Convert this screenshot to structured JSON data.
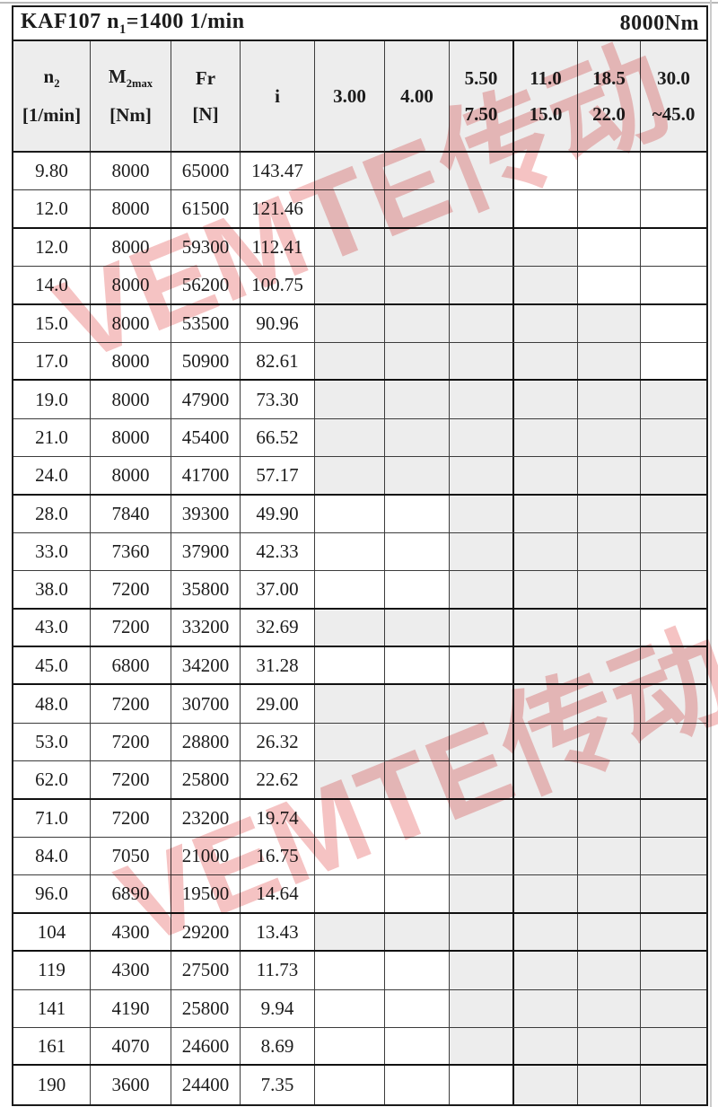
{
  "title": {
    "left_main": "KAF107 n",
    "left_sub": "1",
    "left_tail": "=1400 1/min",
    "torque": "8000Nm"
  },
  "watermark": {
    "text": "VEMTE传动"
  },
  "colors": {
    "shaded_cell": "#ededed",
    "grid_line": "#3c3c3c",
    "thick_line": "#111111",
    "watermark_red": "#e56a6a"
  },
  "columns": [
    {
      "id": "n2",
      "base": "n",
      "sub": "2",
      "line2": "[1/min]"
    },
    {
      "id": "m2max",
      "base": "M",
      "sub": "2max",
      "line2": "[Nm]"
    },
    {
      "id": "fr",
      "base": "Fr",
      "sub": "",
      "line2": "[N]"
    },
    {
      "id": "i",
      "base": "i",
      "sub": "",
      "line2": ""
    },
    {
      "id": "r3",
      "base": "3.00",
      "sub": "",
      "line2": ""
    },
    {
      "id": "r4",
      "base": "4.00",
      "sub": "",
      "line2": ""
    },
    {
      "id": "r55",
      "base": "5.50",
      "sub": "",
      "line2": "7.50"
    },
    {
      "id": "r11",
      "base": "11.0",
      "sub": "",
      "line2": "15.0"
    },
    {
      "id": "r185",
      "base": "18.5",
      "sub": "",
      "line2": "22.0"
    },
    {
      "id": "r30",
      "base": "30.0",
      "sub": "",
      "line2": "~45.0"
    }
  ],
  "rows": [
    {
      "n2": "9.80",
      "m2max": "8000",
      "fr": "65000",
      "i": "143.47",
      "shaded": [
        1,
        1,
        1,
        0,
        0,
        0
      ],
      "group_end": false
    },
    {
      "n2": "12.0",
      "m2max": "8000",
      "fr": "61500",
      "i": "121.46",
      "shaded": [
        1,
        1,
        1,
        0,
        0,
        0
      ],
      "group_end": true
    },
    {
      "n2": "12.0",
      "m2max": "8000",
      "fr": "59300",
      "i": "112.41",
      "shaded": [
        1,
        1,
        1,
        1,
        0,
        0
      ],
      "group_end": false
    },
    {
      "n2": "14.0",
      "m2max": "8000",
      "fr": "56200",
      "i": "100.75",
      "shaded": [
        1,
        1,
        1,
        1,
        0,
        0
      ],
      "group_end": true
    },
    {
      "n2": "15.0",
      "m2max": "8000",
      "fr": "53500",
      "i": "90.96",
      "shaded": [
        1,
        1,
        1,
        1,
        1,
        0
      ],
      "group_end": false
    },
    {
      "n2": "17.0",
      "m2max": "8000",
      "fr": "50900",
      "i": "82.61",
      "shaded": [
        1,
        1,
        1,
        1,
        1,
        0
      ],
      "group_end": true
    },
    {
      "n2": "19.0",
      "m2max": "8000",
      "fr": "47900",
      "i": "73.30",
      "shaded": [
        1,
        1,
        1,
        1,
        1,
        1
      ],
      "group_end": false
    },
    {
      "n2": "21.0",
      "m2max": "8000",
      "fr": "45400",
      "i": "66.52",
      "shaded": [
        1,
        1,
        1,
        1,
        1,
        1
      ],
      "group_end": false
    },
    {
      "n2": "24.0",
      "m2max": "8000",
      "fr": "41700",
      "i": "57.17",
      "shaded": [
        1,
        1,
        1,
        1,
        1,
        1
      ],
      "group_end": true
    },
    {
      "n2": "28.0",
      "m2max": "7840",
      "fr": "39300",
      "i": "49.90",
      "shaded": [
        0,
        0,
        1,
        1,
        1,
        1
      ],
      "group_end": false
    },
    {
      "n2": "33.0",
      "m2max": "7360",
      "fr": "37900",
      "i": "42.33",
      "shaded": [
        0,
        0,
        1,
        1,
        1,
        1
      ],
      "group_end": false
    },
    {
      "n2": "38.0",
      "m2max": "7200",
      "fr": "35800",
      "i": "37.00",
      "shaded": [
        0,
        0,
        1,
        1,
        1,
        1
      ],
      "group_end": true
    },
    {
      "n2": "43.0",
      "m2max": "7200",
      "fr": "33200",
      "i": "32.69",
      "shaded": [
        1,
        1,
        1,
        1,
        1,
        0
      ],
      "group_end": true
    },
    {
      "n2": "45.0",
      "m2max": "6800",
      "fr": "34200",
      "i": "31.28",
      "shaded": [
        0,
        0,
        0,
        1,
        1,
        1
      ],
      "group_end": true
    },
    {
      "n2": "48.0",
      "m2max": "7200",
      "fr": "30700",
      "i": "29.00",
      "shaded": [
        1,
        1,
        1,
        1,
        1,
        1
      ],
      "group_end": false
    },
    {
      "n2": "53.0",
      "m2max": "7200",
      "fr": "28800",
      "i": "26.32",
      "shaded": [
        1,
        1,
        1,
        1,
        1,
        1
      ],
      "group_end": false
    },
    {
      "n2": "62.0",
      "m2max": "7200",
      "fr": "25800",
      "i": "22.62",
      "shaded": [
        1,
        1,
        1,
        1,
        1,
        1
      ],
      "group_end": true
    },
    {
      "n2": "71.0",
      "m2max": "7200",
      "fr": "23200",
      "i": "19.74",
      "shaded": [
        0,
        0,
        1,
        1,
        1,
        1
      ],
      "group_end": false
    },
    {
      "n2": "84.0",
      "m2max": "7050",
      "fr": "21000",
      "i": "16.75",
      "shaded": [
        0,
        0,
        1,
        1,
        1,
        1
      ],
      "group_end": false
    },
    {
      "n2": "96.0",
      "m2max": "6890",
      "fr": "19500",
      "i": "14.64",
      "shaded": [
        0,
        0,
        1,
        1,
        1,
        1
      ],
      "group_end": true
    },
    {
      "n2": "104",
      "m2max": "4300",
      "fr": "29200",
      "i": "13.43",
      "shaded": [
        1,
        1,
        1,
        1,
        1,
        1
      ],
      "group_end": true
    },
    {
      "n2": "119",
      "m2max": "4300",
      "fr": "27500",
      "i": "11.73",
      "shaded": [
        0,
        0,
        1,
        1,
        1,
        1
      ],
      "group_end": false
    },
    {
      "n2": "141",
      "m2max": "4190",
      "fr": "25800",
      "i": "9.94",
      "shaded": [
        0,
        0,
        1,
        1,
        1,
        1
      ],
      "group_end": false
    },
    {
      "n2": "161",
      "m2max": "4070",
      "fr": "24600",
      "i": "8.69",
      "shaded": [
        0,
        0,
        1,
        1,
        1,
        1
      ],
      "group_end": true
    },
    {
      "n2": "190",
      "m2max": "3600",
      "fr": "24400",
      "i": "7.35",
      "shaded": [
        0,
        0,
        0,
        1,
        1,
        1
      ],
      "group_end": false
    }
  ]
}
